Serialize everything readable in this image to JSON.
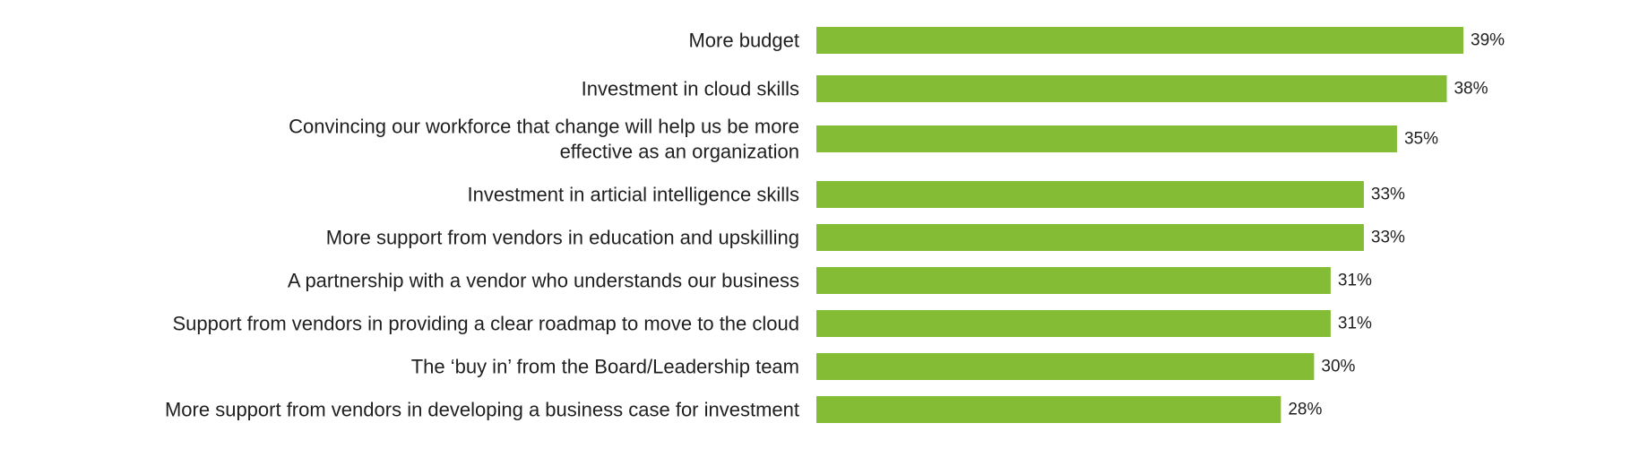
{
  "chart_data": {
    "type": "bar",
    "orientation": "horizontal",
    "title": "",
    "xlabel": "",
    "ylabel": "",
    "value_suffix": "%",
    "xlim": [
      0,
      39
    ],
    "grid": false,
    "legend": "none",
    "bar_color": "#84bd35",
    "text_color": "#1f1f1f",
    "categories": [
      [
        "More budget"
      ],
      [
        "Investment in cloud skills"
      ],
      [
        "Convincing our workforce that change will help us be more",
        "effective as an organization"
      ],
      [
        "Investment in articial intelligence skills"
      ],
      [
        "More support from vendors in education and upskilling"
      ],
      [
        "A partnership with a vendor who understands our business"
      ],
      [
        "Support from vendors in providing a clear roadmap to move to the cloud"
      ],
      [
        "The ‘buy in’ from the Board/Leadership team"
      ],
      [
        "More support from vendors in developing a business case for investment"
      ]
    ],
    "values": [
      39,
      38,
      35,
      33,
      33,
      31,
      31,
      30,
      28
    ],
    "value_labels": [
      "39%",
      "38%",
      "35%",
      "33%",
      "33%",
      "31%",
      "31%",
      "30%",
      "28%"
    ]
  }
}
